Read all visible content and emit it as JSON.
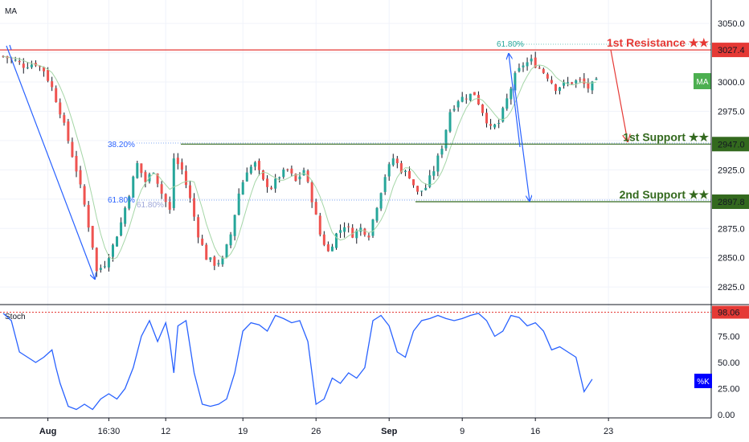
{
  "header": {
    "indicator_label": "MA"
  },
  "ma_badge": {
    "label": "MA",
    "color": "#4caf50"
  },
  "chart_data": [
    {
      "type": "candlestick",
      "price_axis": {
        "ylim": [
          2810,
          3070
        ],
        "ticks": [
          "3050.0",
          "3025.0",
          "3000.0",
          "2975.0",
          "2950.0",
          "2925.0",
          "2900.0",
          "2875.0",
          "2850.0",
          "2825.0"
        ],
        "tick_values": [
          3050,
          3025,
          3000,
          2975,
          2950,
          2925,
          2900,
          2875,
          2850,
          2825
        ]
      },
      "time_axis": {
        "ticks": [
          "Aug",
          "16:30",
          "12",
          "19",
          "26",
          "Sep",
          "9",
          "16",
          "23"
        ],
        "bar_index": [
          11,
          26,
          40,
          59,
          77,
          95,
          113,
          131,
          149
        ],
        "bold": [
          "Aug",
          "Sep"
        ]
      },
      "colors": {
        "up": "#26a69a",
        "down": "#ef5350",
        "wick": "#131722",
        "ma": "#a5d6a7"
      },
      "levels": [
        {
          "label": "1st Resistance ★★",
          "value": 3027.4,
          "value_label": "3027.4",
          "color": "#e53935"
        },
        {
          "label": "1st Support ★★",
          "value": 2947.0,
          "value_label": "2947.0",
          "color": "#33691e"
        },
        {
          "label": "2nd Support ★★",
          "value": 2897.8,
          "value_label": "2897.8",
          "color": "#33691e"
        }
      ],
      "fib_labels": [
        "38.20%",
        "61.80%",
        "61.80%",
        "61.80%"
      ],
      "close_path": [
        [
          0,
          3022
        ],
        [
          3,
          3018
        ],
        [
          5,
          3014
        ],
        [
          8,
          3016
        ],
        [
          10,
          3010
        ],
        [
          12,
          2995
        ],
        [
          14,
          2975
        ],
        [
          16,
          2950
        ],
        [
          18,
          2925
        ],
        [
          20,
          2895
        ],
        [
          22,
          2860
        ],
        [
          23,
          2838
        ],
        [
          25,
          2845
        ],
        [
          27,
          2860
        ],
        [
          29,
          2880
        ],
        [
          31,
          2905
        ],
        [
          33,
          2930
        ],
        [
          35,
          2915
        ],
        [
          37,
          2925
        ],
        [
          39,
          2905
        ],
        [
          41,
          2890
        ],
        [
          42,
          2935
        ],
        [
          44,
          2925
        ],
        [
          46,
          2900
        ],
        [
          48,
          2870
        ],
        [
          50,
          2850
        ],
        [
          52,
          2845
        ],
        [
          54,
          2848
        ],
        [
          56,
          2870
        ],
        [
          58,
          2905
        ],
        [
          60,
          2925
        ],
        [
          62,
          2930
        ],
        [
          64,
          2915
        ],
        [
          66,
          2910
        ],
        [
          68,
          2920
        ],
        [
          70,
          2925
        ],
        [
          72,
          2915
        ],
        [
          74,
          2925
        ],
        [
          76,
          2900
        ],
        [
          78,
          2870
        ],
        [
          80,
          2855
        ],
        [
          82,
          2870
        ],
        [
          84,
          2878
        ],
        [
          86,
          2870
        ],
        [
          88,
          2875
        ],
        [
          90,
          2870
        ],
        [
          92,
          2895
        ],
        [
          94,
          2920
        ],
        [
          96,
          2935
        ],
        [
          98,
          2925
        ],
        [
          100,
          2920
        ],
        [
          102,
          2905
        ],
        [
          104,
          2910
        ],
        [
          106,
          2925
        ],
        [
          108,
          2945
        ],
        [
          110,
          2975
        ],
        [
          112,
          2985
        ],
        [
          114,
          2988
        ],
        [
          116,
          2990
        ],
        [
          118,
          2975
        ],
        [
          120,
          2960
        ],
        [
          122,
          2965
        ],
        [
          124,
          2985
        ],
        [
          126,
          3005
        ],
        [
          128,
          3015
        ],
        [
          130,
          3018
        ],
        [
          132,
          3012
        ],
        [
          134,
          3005
        ],
        [
          136,
          2995
        ],
        [
          138,
          2998
        ],
        [
          140,
          3000
        ],
        [
          142,
          3001
        ],
        [
          144,
          2995
        ],
        [
          146,
          3000
        ]
      ]
    },
    {
      "type": "line",
      "title": "Stoch",
      "ylim": [
        0,
        100
      ],
      "ticks": [
        "75.00",
        "50.00",
        "25.00",
        "0.00"
      ],
      "tick_values": [
        75,
        50,
        25,
        0
      ],
      "level_label": "98.06",
      "level_value": 98.06,
      "series": [
        {
          "name": "%K",
          "color": "#2962ff",
          "points": [
            [
              0,
              97
            ],
            [
              2,
              90
            ],
            [
              4,
              60
            ],
            [
              6,
              55
            ],
            [
              8,
              50
            ],
            [
              10,
              55
            ],
            [
              12,
              62
            ],
            [
              13,
              45
            ],
            [
              14,
              30
            ],
            [
              16,
              8
            ],
            [
              18,
              5
            ],
            [
              20,
              10
            ],
            [
              22,
              5
            ],
            [
              24,
              15
            ],
            [
              26,
              20
            ],
            [
              28,
              15
            ],
            [
              30,
              25
            ],
            [
              32,
              45
            ],
            [
              34,
              75
            ],
            [
              36,
              90
            ],
            [
              38,
              70
            ],
            [
              40,
              88
            ],
            [
              41,
              70
            ],
            [
              42,
              40
            ],
            [
              43,
              85
            ],
            [
              45,
              90
            ],
            [
              47,
              40
            ],
            [
              49,
              10
            ],
            [
              51,
              8
            ],
            [
              53,
              10
            ],
            [
              55,
              15
            ],
            [
              57,
              40
            ],
            [
              59,
              80
            ],
            [
              61,
              88
            ],
            [
              63,
              86
            ],
            [
              65,
              80
            ],
            [
              67,
              95
            ],
            [
              69,
              92
            ],
            [
              71,
              88
            ],
            [
              73,
              90
            ],
            [
              75,
              70
            ],
            [
              77,
              10
            ],
            [
              79,
              15
            ],
            [
              81,
              35
            ],
            [
              83,
              30
            ],
            [
              85,
              40
            ],
            [
              87,
              35
            ],
            [
              89,
              45
            ],
            [
              91,
              90
            ],
            [
              93,
              95
            ],
            [
              95,
              85
            ],
            [
              97,
              60
            ],
            [
              99,
              55
            ],
            [
              101,
              80
            ],
            [
              103,
              90
            ],
            [
              105,
              92
            ],
            [
              107,
              95
            ],
            [
              109,
              92
            ],
            [
              111,
              90
            ],
            [
              113,
              92
            ],
            [
              115,
              95
            ],
            [
              117,
              97
            ],
            [
              119,
              90
            ],
            [
              121,
              75
            ],
            [
              123,
              80
            ],
            [
              125,
              95
            ],
            [
              127,
              93
            ],
            [
              129,
              85
            ],
            [
              131,
              88
            ],
            [
              133,
              80
            ],
            [
              135,
              62
            ],
            [
              137,
              65
            ],
            [
              139,
              60
            ],
            [
              141,
              55
            ],
            [
              143,
              22
            ],
            [
              145,
              34
            ]
          ]
        }
      ]
    }
  ]
}
